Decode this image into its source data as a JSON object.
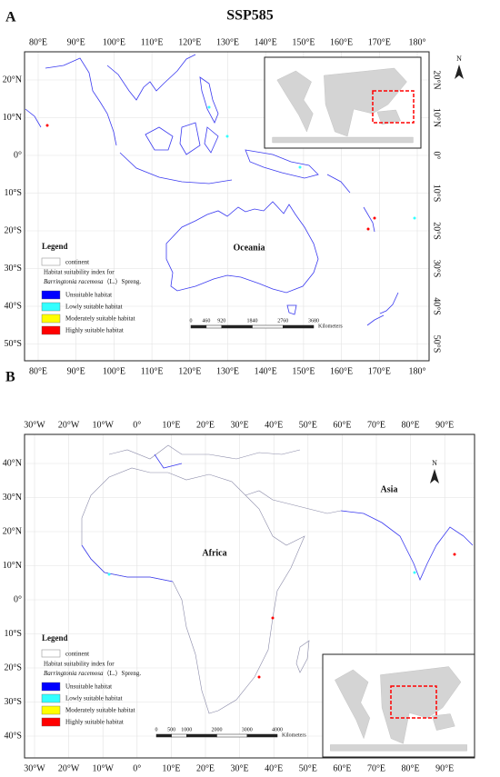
{
  "title": "SSP585",
  "panels": [
    {
      "label": "A",
      "lon_ticks": [
        "80°E",
        "90°E",
        "100°E",
        "110°E",
        "120°E",
        "130°E",
        "140°E",
        "150°E",
        "160°E",
        "170°E",
        "180°"
      ],
      "lat_ticks": [
        "20°N",
        "10°N",
        "0°",
        "10°S",
        "20°S",
        "30°S",
        "40°S",
        "50°S"
      ],
      "regions": [
        "Oceania"
      ],
      "north": "N",
      "scale": {
        "ticks": [
          0,
          460,
          920,
          1840,
          2760,
          3680
        ],
        "unit": "Kilometers"
      },
      "legend": {
        "title": "Legend",
        "continent": "continent",
        "index_title": "Habitat suitability index for",
        "species": "Barringtonia racemosa",
        "authority": "（L.）Spreng.",
        "classes": [
          {
            "name": "Unsuitable habitat",
            "color": "#0000ff"
          },
          {
            "name": "Lowly suitable habitat",
            "color": "#33ffff"
          },
          {
            "name": "Moderately suitable habitat",
            "color": "#ffff00"
          },
          {
            "name": "Highly suitable habitat",
            "color": "#ff0000"
          }
        ]
      }
    },
    {
      "label": "B",
      "lon_ticks": [
        "30°W",
        "20°W",
        "10°W",
        "0°",
        "10°E",
        "20°E",
        "30°E",
        "40°E",
        "50°E",
        "60°E",
        "70°E",
        "80°E",
        "90°E"
      ],
      "lat_ticks": [
        "40°N",
        "30°N",
        "20°N",
        "10°N",
        "0°",
        "10°S",
        "20°S",
        "30°S",
        "40°S"
      ],
      "regions": [
        "Asia",
        "Africa"
      ],
      "north": "N",
      "scale": {
        "ticks": [
          0,
          500,
          1000,
          2000,
          3000,
          4000
        ],
        "unit": "Kilometers"
      },
      "legend": {
        "title": "Legend",
        "continent": "continent",
        "index_title": "Habitat suitability index for",
        "species": "Barringtonia racemosa",
        "authority": "（L.）Spreng.",
        "classes": [
          {
            "name": "Unsuitable habitat",
            "color": "#0000ff"
          },
          {
            "name": "Lowly suitable habitat",
            "color": "#33ffff"
          },
          {
            "name": "Moderately suitable habitat",
            "color": "#ffff00"
          },
          {
            "name": "Highly suitable habitat",
            "color": "#ff0000"
          }
        ]
      }
    }
  ]
}
